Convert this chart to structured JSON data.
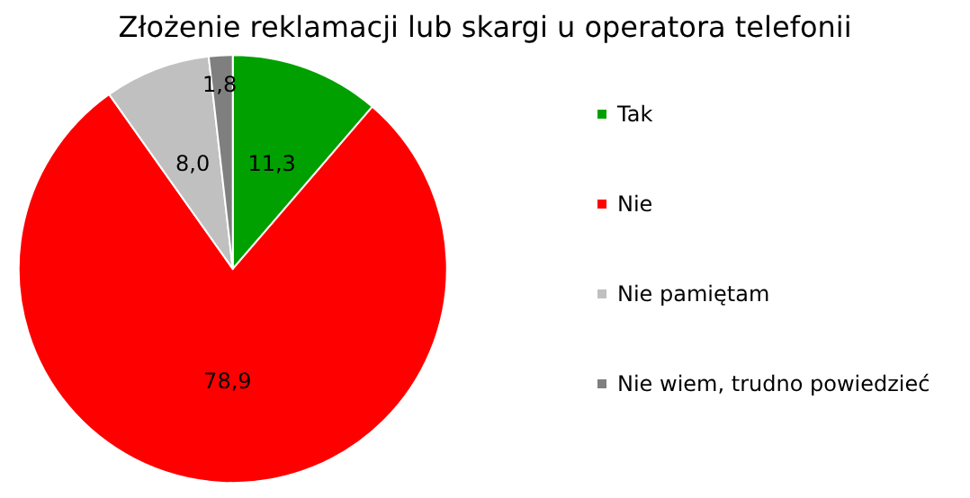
{
  "chart_data": {
    "type": "pie",
    "title": "Złożenie reklamacji lub skargi u operatora telefonii",
    "categories": [
      "Tak",
      "Nie",
      "Nie pamiętam",
      "Nie wiem, trudno powiedzieć"
    ],
    "values": [
      11.3,
      78.9,
      8.0,
      1.8
    ],
    "colors": [
      "#00a000",
      "#ff0000",
      "#c0c0c0",
      "#7f7f7f"
    ],
    "value_labels": [
      "11,3",
      "78,9",
      "8,0",
      "1,8"
    ],
    "legend": "right"
  }
}
